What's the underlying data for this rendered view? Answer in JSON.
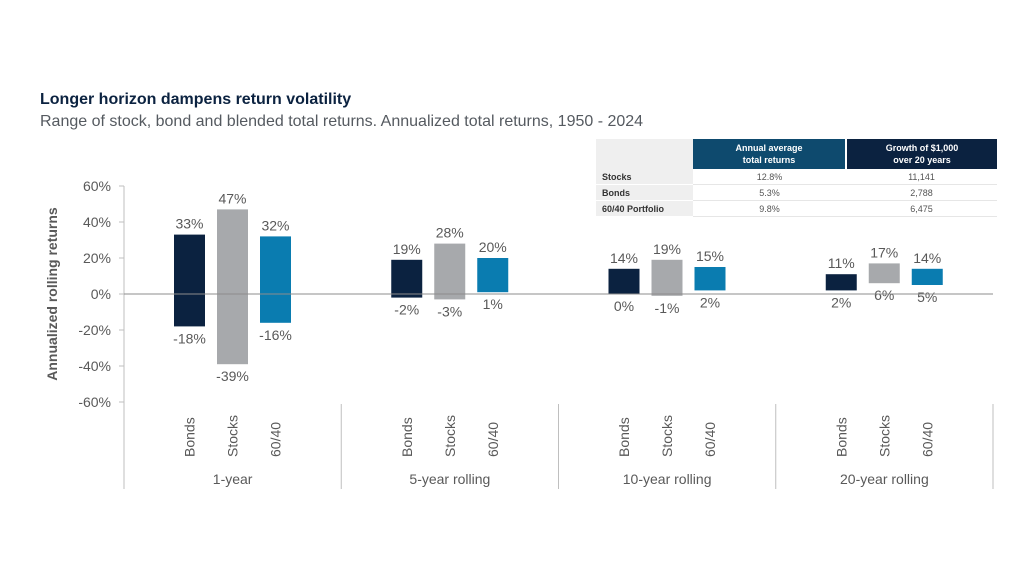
{
  "header": {
    "title": "Longer horizon dampens return volatility",
    "subtitle": "Range of stock, bond and blended total returns. Annualized total returns, 1950 - 2024"
  },
  "table": {
    "col_headers": [
      "Annual average\ntotal returns",
      "Growth of $1,000\nover 20 years"
    ],
    "col_header_lines": [
      [
        "Annual average",
        "total returns"
      ],
      [
        "Growth of $1,000",
        "over 20 years"
      ]
    ],
    "rows": [
      {
        "label": "Stocks",
        "avg": "12.8%",
        "growth": "11,141"
      },
      {
        "label": "Bonds",
        "avg": "5.3%",
        "growth": "2,788"
      },
      {
        "label": "60/40 Portfolio",
        "avg": "9.8%",
        "growth": "6,475"
      }
    ]
  },
  "colors": {
    "Bonds": "#0b2240",
    "Stocks": "#a7a9ac",
    "60/40": "#0a7cb0"
  },
  "chart_data": {
    "type": "bar",
    "subtype": "floating-range",
    "title": "Longer horizon dampens return volatility",
    "ylabel": "Annualized rolling returns",
    "ylim": [
      -60,
      60
    ],
    "yticks": [
      60,
      40,
      20,
      0,
      -20,
      -40,
      -60
    ],
    "ytick_labels": [
      "60%",
      "40%",
      "20%",
      "0%",
      "-20%",
      "-40%",
      "-60%"
    ],
    "groups": [
      "1-year",
      "5-year rolling",
      "10-year rolling",
      "20-year rolling"
    ],
    "categories": [
      "Bonds",
      "Stocks",
      "60/40"
    ],
    "series": [
      {
        "name": "Bonds",
        "high": [
          33,
          19,
          14,
          11
        ],
        "low": [
          -18,
          -2,
          0,
          2
        ]
      },
      {
        "name": "Stocks",
        "high": [
          47,
          28,
          19,
          17
        ],
        "low": [
          -39,
          -3,
          -1,
          6
        ]
      },
      {
        "name": "60/40",
        "high": [
          32,
          20,
          15,
          14
        ],
        "low": [
          -16,
          1,
          2,
          5
        ]
      }
    ],
    "grid": false,
    "legend": "none"
  }
}
